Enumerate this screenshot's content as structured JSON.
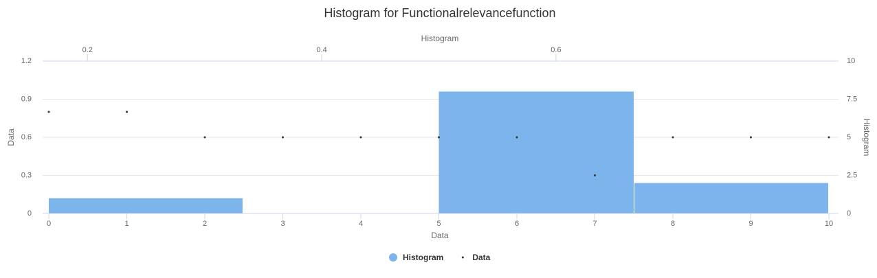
{
  "chart_data": {
    "type": "histogram",
    "title": "Histogram for Functionalrelevancefunction",
    "x_axis_title": "Data",
    "y_axis_title": "Data",
    "x2_axis_title": "Histogram",
    "y2_axis_title": "Histogram",
    "xlim": [
      0,
      10
    ],
    "xticks": [
      0,
      1,
      2,
      3,
      4,
      5,
      6,
      7,
      8,
      9,
      10
    ],
    "x2lim": [
      0.167,
      0.833
    ],
    "x2ticks": [
      0.2,
      0.4,
      0.6
    ],
    "ylim": [
      0,
      1.2
    ],
    "yticks": [
      0,
      0.3,
      0.6,
      0.9,
      1.2
    ],
    "y2lim": [
      0,
      10
    ],
    "y2ticks": [
      0,
      2.5,
      5,
      7.5,
      10
    ],
    "grid": true,
    "legend": "bottom",
    "series": [
      {
        "name": "Histogram",
        "type": "histogram",
        "color": "#7cb5ec",
        "axis": "y2",
        "bins": [
          0.167,
          0.333,
          0.5,
          0.667,
          0.833
        ],
        "values": [
          1,
          0,
          8,
          2
        ]
      },
      {
        "name": "Data",
        "type": "scatter",
        "color": "#333333",
        "x": [
          0,
          1,
          2,
          3,
          4,
          5,
          6,
          7,
          8,
          9,
          10
        ],
        "values": [
          0.8,
          0.8,
          0.6,
          0.6,
          0.6,
          0.6,
          0.6,
          0.3,
          0.6,
          0.6,
          0.6
        ]
      }
    ]
  }
}
